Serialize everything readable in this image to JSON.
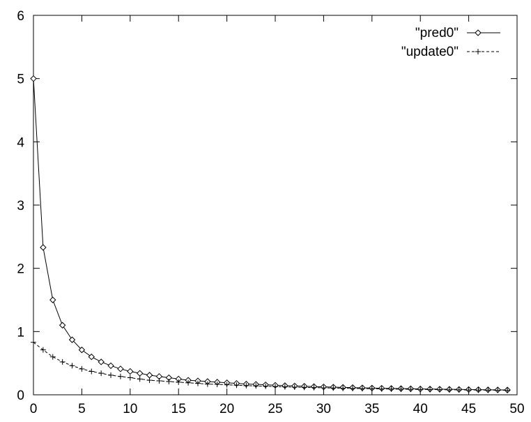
{
  "chart_data": {
    "type": "line",
    "title": "",
    "xlabel": "",
    "ylabel": "",
    "xlim": [
      0,
      50
    ],
    "ylim": [
      0,
      6
    ],
    "xticks": [
      0,
      5,
      10,
      15,
      20,
      25,
      30,
      35,
      40,
      45,
      50
    ],
    "yticks": [
      0,
      1,
      2,
      3,
      4,
      5,
      6
    ],
    "grid": false,
    "legend_position": "top-right",
    "series": [
      {
        "name": "\"pred0\"",
        "marker": "diamond",
        "line": "solid",
        "color": "#000000",
        "x": [
          0,
          1,
          2,
          3,
          4,
          5,
          6,
          7,
          8,
          9,
          10,
          11,
          12,
          13,
          14,
          15,
          16,
          17,
          18,
          19,
          20,
          21,
          22,
          23,
          24,
          25,
          26,
          27,
          28,
          29,
          30,
          31,
          32,
          33,
          34,
          35,
          36,
          37,
          38,
          39,
          40,
          41,
          42,
          43,
          44,
          45,
          46,
          47,
          48,
          49
        ],
        "values": [
          5.0,
          2.33,
          1.5,
          1.1,
          0.87,
          0.71,
          0.6,
          0.52,
          0.46,
          0.41,
          0.37,
          0.34,
          0.31,
          0.29,
          0.27,
          0.25,
          0.23,
          0.22,
          0.21,
          0.2,
          0.19,
          0.18,
          0.17,
          0.165,
          0.158,
          0.151,
          0.145,
          0.14,
          0.135,
          0.13,
          0.125,
          0.121,
          0.117,
          0.114,
          0.11,
          0.107,
          0.104,
          0.101,
          0.098,
          0.096,
          0.093,
          0.091,
          0.089,
          0.087,
          0.085,
          0.083,
          0.081,
          0.079,
          0.078,
          0.076
        ]
      },
      {
        "name": "\"update0\"",
        "marker": "plus",
        "line": "dashed",
        "color": "#000000",
        "x": [
          0,
          1,
          2,
          3,
          4,
          5,
          6,
          7,
          8,
          9,
          10,
          11,
          12,
          13,
          14,
          15,
          16,
          17,
          18,
          19,
          20,
          21,
          22,
          23,
          24,
          25,
          26,
          27,
          28,
          29,
          30,
          31,
          32,
          33,
          34,
          35,
          36,
          37,
          38,
          39,
          40,
          41,
          42,
          43,
          44,
          45,
          46,
          47,
          48,
          49
        ],
        "values": [
          0.83,
          0.71,
          0.6,
          0.52,
          0.46,
          0.41,
          0.37,
          0.34,
          0.31,
          0.29,
          0.27,
          0.25,
          0.23,
          0.22,
          0.21,
          0.2,
          0.19,
          0.18,
          0.17,
          0.165,
          0.158,
          0.151,
          0.145,
          0.14,
          0.135,
          0.13,
          0.125,
          0.121,
          0.117,
          0.114,
          0.11,
          0.107,
          0.104,
          0.101,
          0.098,
          0.096,
          0.093,
          0.091,
          0.089,
          0.087,
          0.085,
          0.083,
          0.081,
          0.079,
          0.078,
          0.076,
          0.075,
          0.073,
          0.072,
          0.071
        ]
      }
    ]
  }
}
